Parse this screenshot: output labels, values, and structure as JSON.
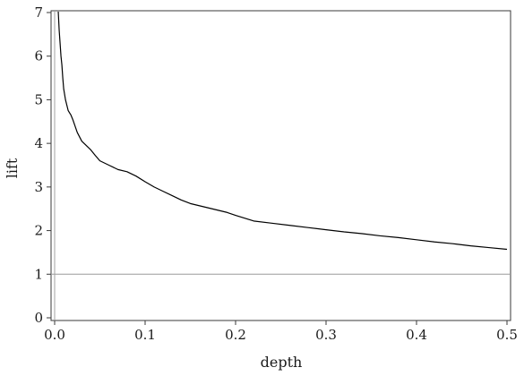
{
  "chart_data": {
    "type": "line",
    "title": "",
    "xlabel": "depth",
    "ylabel": "lift",
    "xlim": [
      0,
      0.5
    ],
    "ylim": [
      0,
      7
    ],
    "grid": false,
    "legend": "none",
    "x_ticks": [
      {
        "value": 0.0,
        "label": "0.0"
      },
      {
        "value": 0.1,
        "label": "0.1"
      },
      {
        "value": 0.2,
        "label": "0.2"
      },
      {
        "value": 0.3,
        "label": "0.3"
      },
      {
        "value": 0.4,
        "label": "0.4"
      },
      {
        "value": 0.5,
        "label": "0.5"
      }
    ],
    "y_ticks": [
      {
        "value": 0,
        "label": "0"
      },
      {
        "value": 1,
        "label": "1"
      },
      {
        "value": 2,
        "label": "2"
      },
      {
        "value": 3,
        "label": "3"
      },
      {
        "value": 4,
        "label": "4"
      },
      {
        "value": 5,
        "label": "5"
      },
      {
        "value": 6,
        "label": "6"
      },
      {
        "value": 7,
        "label": "7"
      }
    ],
    "reference_line": {
      "y": 1,
      "color": "#9a9a9a"
    },
    "series": [
      {
        "color": "#000000",
        "x": [
          0.004,
          0.005,
          0.006,
          0.007,
          0.008,
          0.009,
          0.01,
          0.012,
          0.015,
          0.018,
          0.02,
          0.025,
          0.03,
          0.035,
          0.04,
          0.045,
          0.05,
          0.06,
          0.07,
          0.08,
          0.09,
          0.1,
          0.11,
          0.12,
          0.13,
          0.14,
          0.15,
          0.17,
          0.19,
          0.2,
          0.22,
          0.24,
          0.26,
          0.28,
          0.3,
          0.32,
          0.34,
          0.36,
          0.38,
          0.4,
          0.42,
          0.44,
          0.46,
          0.48,
          0.5
        ],
        "y": [
          7.05,
          6.6,
          6.3,
          6.0,
          5.8,
          5.5,
          5.25,
          5.0,
          4.75,
          4.65,
          4.55,
          4.25,
          4.05,
          3.95,
          3.85,
          3.72,
          3.6,
          3.5,
          3.4,
          3.35,
          3.25,
          3.12,
          3.0,
          2.9,
          2.8,
          2.7,
          2.62,
          2.52,
          2.42,
          2.35,
          2.22,
          2.17,
          2.12,
          2.07,
          2.02,
          1.97,
          1.93,
          1.88,
          1.84,
          1.79,
          1.74,
          1.7,
          1.65,
          1.61,
          1.57
        ]
      }
    ]
  }
}
